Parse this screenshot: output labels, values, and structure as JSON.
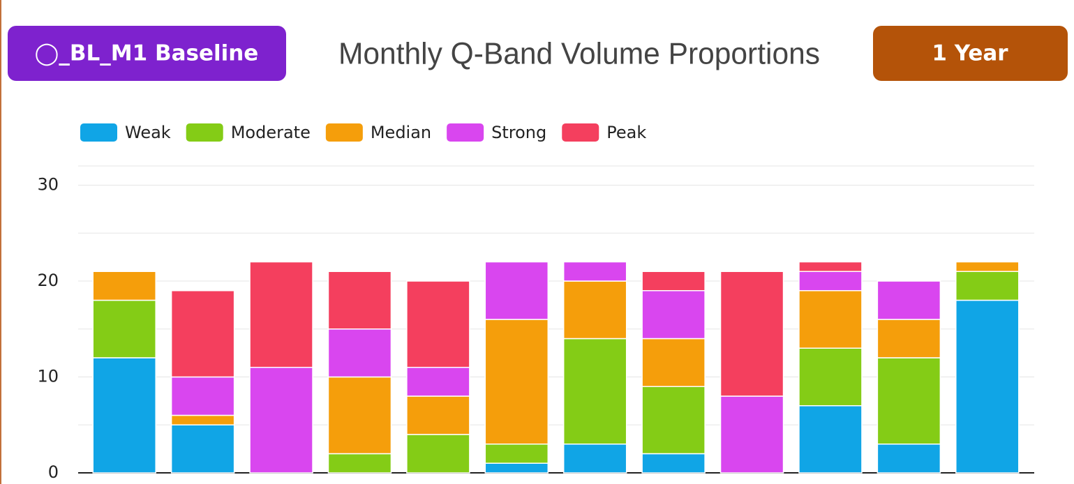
{
  "header": {
    "scenario_button": "◯_BL_M1 Baseline",
    "range_button": "1 Year"
  },
  "chart_data": {
    "type": "stacked_bar",
    "title": "Monthly Q-Band Volume Proportions",
    "categories": [
      null,
      null,
      null,
      null,
      null,
      null,
      null,
      null,
      null,
      null,
      null,
      null
    ],
    "series": [
      {
        "name": "Weak",
        "color": "#10a5e6",
        "values": [
          12,
          5,
          0,
          0,
          0,
          1,
          3,
          2,
          0,
          7,
          3,
          18
        ]
      },
      {
        "name": "Moderate",
        "color": "#84cc16",
        "values": [
          6,
          0,
          0,
          2,
          4,
          2,
          11,
          7,
          0,
          6,
          9,
          3
        ]
      },
      {
        "name": "Median",
        "color": "#f59e0b",
        "values": [
          3,
          1,
          0,
          8,
          4,
          13,
          6,
          5,
          0,
          6,
          4,
          1
        ]
      },
      {
        "name": "Strong",
        "color": "#d946ef",
        "values": [
          0,
          4,
          11,
          5,
          3,
          6,
          2,
          5,
          8,
          2,
          4,
          0
        ]
      },
      {
        "name": "Peak",
        "color": "#f43f5e",
        "values": [
          0,
          9,
          11,
          6,
          9,
          0,
          0,
          2,
          13,
          1,
          0,
          0
        ]
      }
    ],
    "ylim": [
      0,
      32
    ],
    "yticks": [
      0,
      10,
      20,
      30
    ],
    "minor_gridlines": [
      5,
      15,
      25
    ],
    "grid": true,
    "legend": "top-left"
  }
}
